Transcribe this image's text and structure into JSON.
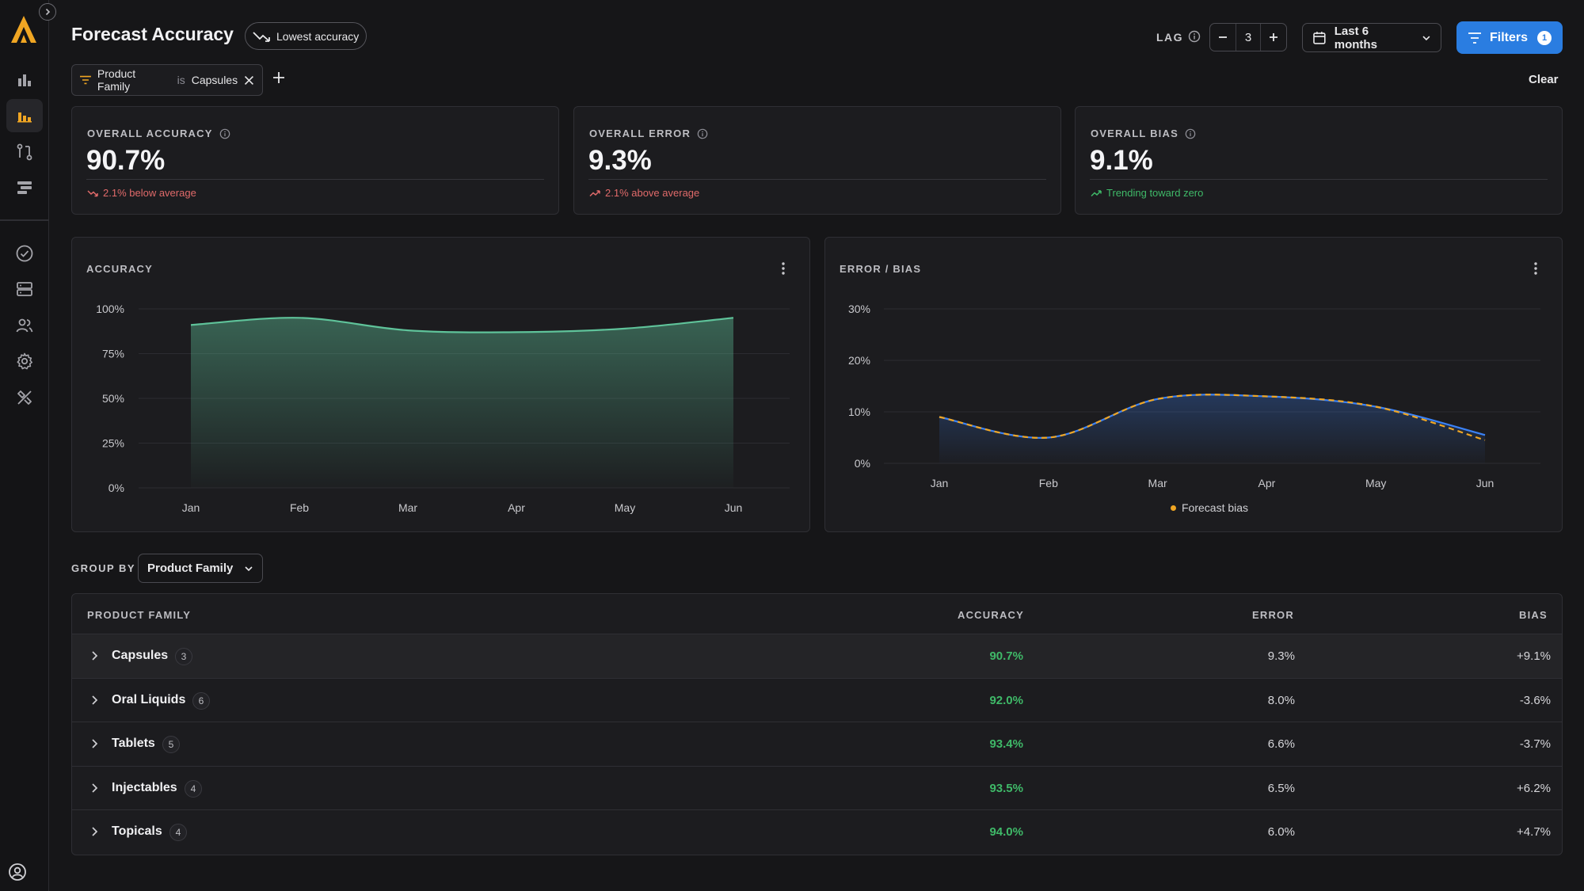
{
  "page": {
    "title": "Forecast Accuracy",
    "sort_chip": "Lowest accuracy",
    "lag_label": "LAG",
    "lag_value": "3",
    "date_range": "Last 6 months",
    "filters_label": "Filters",
    "filters_count": "1",
    "clear_label": "Clear"
  },
  "active_filter": {
    "field": "Product Family",
    "operator": "is",
    "value": "Capsules"
  },
  "kpis": [
    {
      "label": "OVERALL ACCURACY",
      "value": "90.7%",
      "delta": "2.1% below average",
      "trend": "down"
    },
    {
      "label": "OVERALL ERROR",
      "value": "9.3%",
      "delta": "2.1% above average",
      "trend": "up"
    },
    {
      "label": "OVERALL BIAS",
      "value": "9.1%",
      "delta": "Trending toward zero",
      "trend": "up"
    }
  ],
  "charts": {
    "accuracy_title": "ACCURACY",
    "error_bias_title": "ERROR / BIAS",
    "legend_label": "Forecast bias"
  },
  "chart_data": [
    {
      "type": "area",
      "title": "ACCURACY",
      "categories": [
        "Jan",
        "Feb",
        "Mar",
        "Apr",
        "May",
        "Jun"
      ],
      "y_ticks": [
        "100%",
        "75%",
        "50%",
        "25%",
        "0%"
      ],
      "ylim": [
        0,
        100
      ],
      "series": [
        {
          "values": [
            91,
            95,
            88,
            87,
            89,
            95
          ]
        }
      ],
      "color": "#5fc39a",
      "grid": true
    },
    {
      "type": "line",
      "title": "ERROR / BIAS",
      "categories": [
        "Jan",
        "Feb",
        "Mar",
        "Apr",
        "May",
        "Jun"
      ],
      "y_ticks": [
        "30%",
        "20%",
        "10%",
        "0%"
      ],
      "ylim": [
        0,
        30
      ],
      "series": [
        {
          "values": [
            9,
            5,
            12.5,
            13,
            11,
            5.5
          ],
          "color": "#3b82f6"
        },
        {
          "name": "Forecast bias",
          "values": [
            9,
            5,
            12.5,
            13,
            11,
            4.5
          ],
          "color": "#f0a623",
          "dashed": true
        }
      ],
      "legend": "bottom-center",
      "grid": true
    }
  ],
  "group_by": {
    "label": "GROUP BY",
    "value": "Product Family"
  },
  "table": {
    "headers": {
      "name": "PRODUCT FAMILY",
      "accuracy": "ACCURACY",
      "error": "ERROR",
      "bias": "BIAS"
    },
    "rows": [
      {
        "name": "Capsules",
        "count": "3",
        "accuracy": "90.7%",
        "error": "9.3%",
        "bias": "+9.1%"
      },
      {
        "name": "Oral Liquids",
        "count": "6",
        "accuracy": "92.0%",
        "error": "8.0%",
        "bias": "-3.6%"
      },
      {
        "name": "Tablets",
        "count": "5",
        "accuracy": "93.4%",
        "error": "6.6%",
        "bias": "-3.7%"
      },
      {
        "name": "Injectables",
        "count": "4",
        "accuracy": "93.5%",
        "error": "6.5%",
        "bias": "+6.2%"
      },
      {
        "name": "Topicals",
        "count": "4",
        "accuracy": "94.0%",
        "error": "6.0%",
        "bias": "+4.7%"
      }
    ]
  },
  "colors": {
    "accent": "#2a7de1",
    "brand": "#f0a623",
    "positive": "#3fb968",
    "negative": "#e06a6a"
  }
}
